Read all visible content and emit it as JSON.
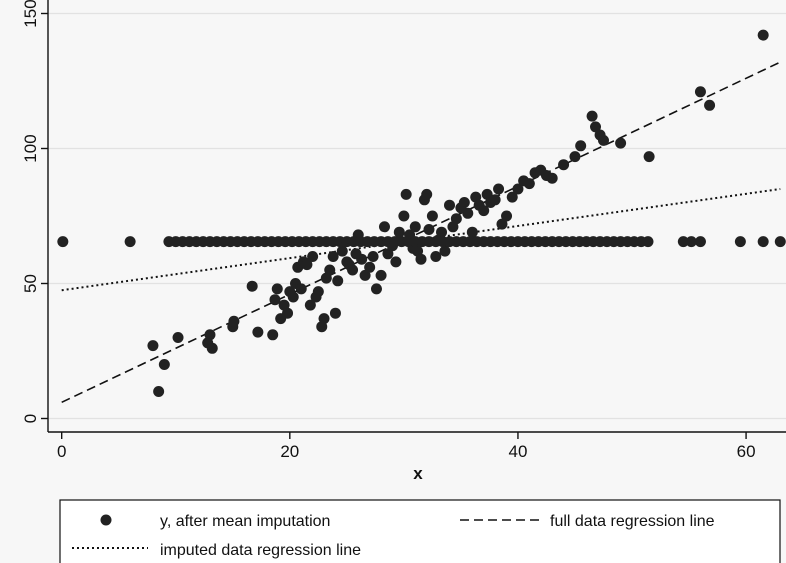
{
  "chart_data": {
    "type": "scatter",
    "title": "",
    "xlabel": "x",
    "ylabel": "",
    "xlim": [
      -1.2,
      63.5
    ],
    "ylim": [
      -5,
      155
    ],
    "xticks": [
      {
        "value": 0,
        "label": "0"
      },
      {
        "value": 20,
        "label": "20"
      },
      {
        "value": 40,
        "label": "40"
      },
      {
        "value": 60,
        "label": "60"
      }
    ],
    "yticks": [
      {
        "value": 0,
        "label": "0"
      },
      {
        "value": 50,
        "label": "50"
      },
      {
        "value": 100,
        "label": "100"
      },
      {
        "value": 150,
        "label": "150"
      }
    ],
    "grid": "horizontal",
    "legend_position": "bottom",
    "colors": {
      "points": "#222222",
      "lines": "#111111",
      "grid": "#e2e2e2",
      "plot_bg": "#f7f7f7"
    },
    "series": [
      {
        "name": "y, after mean imputation",
        "kind": "scatter",
        "points": [
          [
            8.0,
            27
          ],
          [
            8.5,
            10
          ],
          [
            9.0,
            20
          ],
          [
            10.2,
            30
          ],
          [
            12.8,
            28
          ],
          [
            13.0,
            31
          ],
          [
            13.2,
            26
          ],
          [
            15.0,
            34
          ],
          [
            15.1,
            36
          ],
          [
            16.7,
            49
          ],
          [
            17.2,
            32
          ],
          [
            18.5,
            31
          ],
          [
            18.7,
            44
          ],
          [
            18.9,
            48
          ],
          [
            19.2,
            37
          ],
          [
            19.5,
            42
          ],
          [
            19.8,
            39
          ],
          [
            20.0,
            47
          ],
          [
            20.3,
            45
          ],
          [
            20.5,
            50
          ],
          [
            20.7,
            56
          ],
          [
            21.0,
            48
          ],
          [
            21.2,
            58
          ],
          [
            21.5,
            57
          ],
          [
            21.8,
            42
          ],
          [
            22.0,
            60
          ],
          [
            22.3,
            45
          ],
          [
            22.5,
            47
          ],
          [
            22.8,
            34
          ],
          [
            23.0,
            37
          ],
          [
            23.2,
            52
          ],
          [
            23.5,
            55
          ],
          [
            23.8,
            60
          ],
          [
            24.0,
            39
          ],
          [
            24.2,
            51
          ],
          [
            24.6,
            62
          ],
          [
            25.0,
            58
          ],
          [
            25.2,
            57
          ],
          [
            25.5,
            55
          ],
          [
            25.8,
            61
          ],
          [
            26.0,
            68
          ],
          [
            26.3,
            59
          ],
          [
            26.6,
            53
          ],
          [
            27.0,
            56
          ],
          [
            27.3,
            60
          ],
          [
            27.6,
            48
          ],
          [
            28.0,
            53
          ],
          [
            28.3,
            71
          ],
          [
            28.6,
            61
          ],
          [
            29.0,
            64
          ],
          [
            29.3,
            58
          ],
          [
            29.6,
            69
          ],
          [
            30.0,
            75
          ],
          [
            30.2,
            83
          ],
          [
            30.5,
            68
          ],
          [
            30.8,
            63
          ],
          [
            31.0,
            71
          ],
          [
            31.2,
            62
          ],
          [
            31.5,
            59
          ],
          [
            31.8,
            81
          ],
          [
            32.0,
            83
          ],
          [
            32.2,
            70
          ],
          [
            32.5,
            75
          ],
          [
            32.8,
            60
          ],
          [
            33.0,
            66
          ],
          [
            33.3,
            69
          ],
          [
            33.6,
            62
          ],
          [
            34.0,
            79
          ],
          [
            34.3,
            71
          ],
          [
            34.6,
            74
          ],
          [
            35.0,
            78
          ],
          [
            35.3,
            80
          ],
          [
            35.6,
            76
          ],
          [
            36.0,
            69
          ],
          [
            36.3,
            82
          ],
          [
            36.6,
            79
          ],
          [
            37.0,
            77
          ],
          [
            37.3,
            83
          ],
          [
            37.6,
            80
          ],
          [
            38.0,
            81
          ],
          [
            38.3,
            85
          ],
          [
            38.6,
            72
          ],
          [
            39.0,
            75
          ],
          [
            39.5,
            82
          ],
          [
            40.0,
            85
          ],
          [
            40.5,
            88
          ],
          [
            41.0,
            87
          ],
          [
            41.5,
            91
          ],
          [
            42.0,
            92
          ],
          [
            42.5,
            90
          ],
          [
            43.0,
            89
          ],
          [
            44.0,
            94
          ],
          [
            45.0,
            97
          ],
          [
            45.5,
            101
          ],
          [
            46.5,
            112
          ],
          [
            46.8,
            108
          ],
          [
            47.2,
            105
          ],
          [
            47.5,
            103
          ],
          [
            49.0,
            102
          ],
          [
            51.5,
            97
          ],
          [
            56.0,
            121
          ],
          [
            56.8,
            116
          ],
          [
            61.5,
            142
          ],
          [
            0.1,
            65.5
          ],
          [
            6.0,
            65.5
          ],
          [
            9.4,
            65.5
          ],
          [
            10.0,
            65.5
          ],
          [
            10.6,
            65.5
          ],
          [
            11.2,
            65.5
          ],
          [
            11.8,
            65.5
          ],
          [
            12.4,
            65.5
          ],
          [
            13.0,
            65.5
          ],
          [
            13.6,
            65.5
          ],
          [
            14.2,
            65.5
          ],
          [
            14.8,
            65.5
          ],
          [
            15.4,
            65.5
          ],
          [
            16.0,
            65.5
          ],
          [
            16.6,
            65.5
          ],
          [
            17.2,
            65.5
          ],
          [
            17.8,
            65.5
          ],
          [
            18.4,
            65.5
          ],
          [
            19.0,
            65.5
          ],
          [
            19.6,
            65.5
          ],
          [
            20.2,
            65.5
          ],
          [
            20.8,
            65.5
          ],
          [
            21.4,
            65.5
          ],
          [
            22.0,
            65.5
          ],
          [
            22.6,
            65.5
          ],
          [
            23.2,
            65.5
          ],
          [
            23.8,
            65.5
          ],
          [
            24.4,
            65.5
          ],
          [
            25.0,
            65.5
          ],
          [
            25.6,
            65.5
          ],
          [
            26.2,
            65.5
          ],
          [
            26.8,
            65.5
          ],
          [
            27.4,
            65.5
          ],
          [
            28.0,
            65.5
          ],
          [
            28.6,
            65.5
          ],
          [
            29.2,
            65.5
          ],
          [
            29.8,
            65.5
          ],
          [
            30.4,
            65.5
          ],
          [
            31.0,
            65.5
          ],
          [
            31.6,
            65.5
          ],
          [
            32.2,
            65.5
          ],
          [
            32.8,
            65.5
          ],
          [
            33.4,
            65.5
          ],
          [
            34.0,
            65.5
          ],
          [
            34.6,
            65.5
          ],
          [
            35.2,
            65.5
          ],
          [
            35.8,
            65.5
          ],
          [
            36.4,
            65.5
          ],
          [
            37.0,
            65.5
          ],
          [
            37.6,
            65.5
          ],
          [
            38.2,
            65.5
          ],
          [
            38.8,
            65.5
          ],
          [
            39.4,
            65.5
          ],
          [
            40.0,
            65.5
          ],
          [
            40.6,
            65.5
          ],
          [
            41.2,
            65.5
          ],
          [
            41.8,
            65.5
          ],
          [
            42.4,
            65.5
          ],
          [
            43.0,
            65.5
          ],
          [
            43.6,
            65.5
          ],
          [
            44.2,
            65.5
          ],
          [
            44.8,
            65.5
          ],
          [
            45.4,
            65.5
          ],
          [
            46.0,
            65.5
          ],
          [
            46.6,
            65.5
          ],
          [
            47.2,
            65.5
          ],
          [
            47.8,
            65.5
          ],
          [
            48.4,
            65.5
          ],
          [
            49.0,
            65.5
          ],
          [
            49.6,
            65.5
          ],
          [
            50.2,
            65.5
          ],
          [
            50.8,
            65.5
          ],
          [
            51.4,
            65.5
          ],
          [
            54.5,
            65.5
          ],
          [
            55.2,
            65.5
          ],
          [
            56.0,
            65.5
          ],
          [
            59.5,
            65.5
          ],
          [
            61.5,
            65.5
          ],
          [
            63.0,
            65.5
          ]
        ]
      },
      {
        "name": "full data regression line",
        "kind": "line",
        "dash": "dashed",
        "points": [
          [
            0,
            6
          ],
          [
            63,
            132
          ]
        ]
      },
      {
        "name": "imputed data regression line",
        "kind": "line",
        "dash": "dotted",
        "points": [
          [
            0,
            47.5
          ],
          [
            63,
            85
          ]
        ]
      }
    ]
  },
  "legend": {
    "items": [
      {
        "label": "y, after mean imputation",
        "symbol": "dot"
      },
      {
        "label": "full data regression line",
        "symbol": "dashed"
      },
      {
        "label": "imputed data regression line",
        "symbol": "dotted"
      }
    ]
  }
}
